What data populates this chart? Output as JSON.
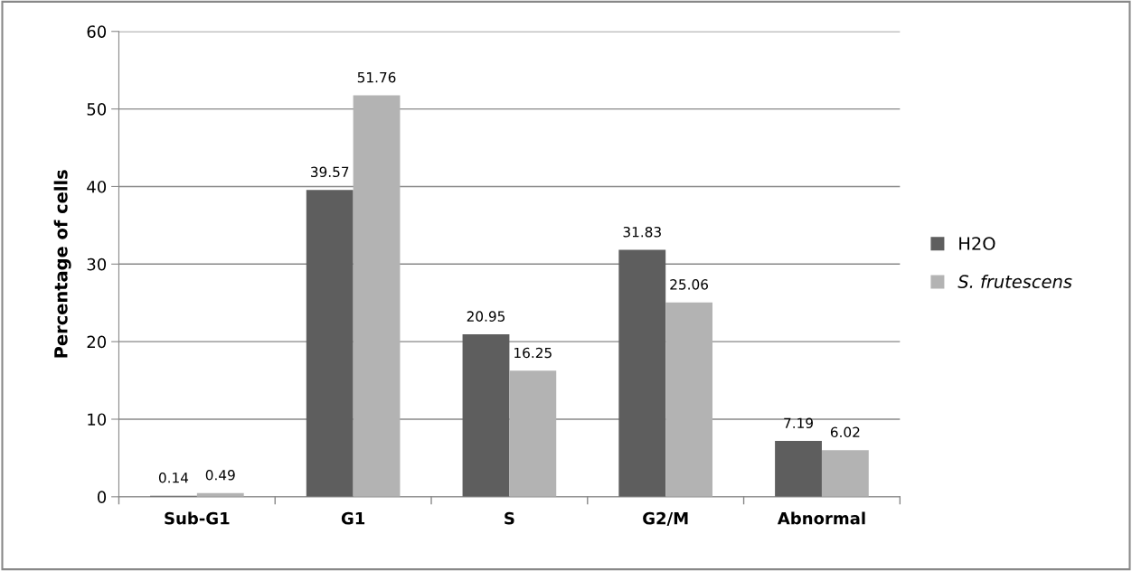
{
  "chart_data": {
    "type": "bar",
    "ylabel": "Percentage of cells",
    "categories": [
      "Sub-G1",
      "G1",
      "S",
      "G2/M",
      "Abnormal"
    ],
    "series": [
      {
        "name": "H2O",
        "color": "#5e5e5e",
        "values": [
          0.14,
          39.57,
          20.95,
          31.83,
          7.19
        ]
      },
      {
        "name": "S. frutescens",
        "color": "#b3b3b3",
        "values": [
          0.49,
          51.76,
          16.25,
          25.06,
          6.02
        ]
      }
    ],
    "ylim": [
      0,
      60
    ],
    "yticks": [
      0,
      10,
      20,
      30,
      40,
      50,
      60
    ],
    "grid": "y",
    "legend": "right",
    "data_labels": true
  }
}
